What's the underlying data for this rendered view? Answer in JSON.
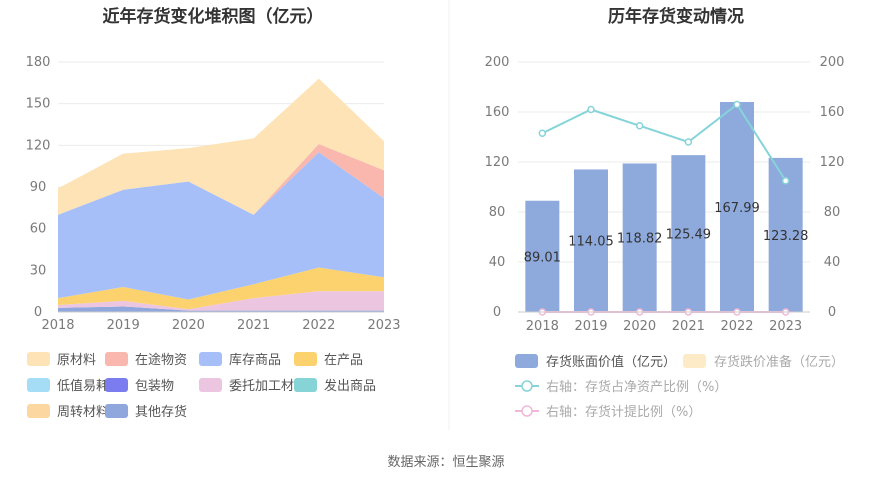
{
  "left_chart": {
    "title": "近年存货变化堆积图（亿元）",
    "chart_data": {
      "type": "area",
      "stacked": true,
      "x": [
        "2018",
        "2019",
        "2020",
        "2021",
        "2022",
        "2023"
      ],
      "ylim": [
        0,
        180
      ],
      "yticks": [
        "0",
        "30",
        "60",
        "90",
        "120",
        "150",
        "180"
      ],
      "series": [
        {
          "name": "原材料",
          "color": "#fde3b5",
          "values": [
            19,
            26,
            24,
            55,
            47,
            21
          ]
        },
        {
          "name": "在途物资",
          "color": "#f9b7ae",
          "values": [
            0,
            0,
            0,
            0,
            6,
            20
          ]
        },
        {
          "name": "库存商品",
          "color": "#a6bff9",
          "values": [
            60,
            70,
            85,
            50,
            83,
            57
          ]
        },
        {
          "name": "在产品",
          "color": "#fcd26f",
          "values": [
            5,
            10,
            7,
            10,
            17,
            10
          ]
        },
        {
          "name": "低值易耗品",
          "color": "#a5dcf6",
          "values": [
            0,
            0,
            0,
            0,
            0,
            0
          ]
        },
        {
          "name": "包装物",
          "color": "#7b7cf0",
          "values": [
            0,
            0,
            0,
            0,
            0,
            0
          ]
        },
        {
          "name": "委托加工材料",
          "color": "#ecc6e1",
          "values": [
            2,
            4,
            1,
            9,
            14,
            14
          ]
        },
        {
          "name": "发出商品",
          "color": "#86d4d5",
          "values": [
            0,
            0,
            0,
            0,
            0,
            0
          ]
        },
        {
          "name": "周转材料",
          "color": "#fdd7a0",
          "values": [
            0,
            0,
            0,
            0,
            0,
            0
          ]
        },
        {
          "name": "其他存货",
          "color": "#8fa7dd",
          "values": [
            3,
            4,
            1,
            1,
            1,
            1
          ]
        }
      ]
    }
  },
  "right_chart": {
    "title": "历年存货变动情况",
    "chart_data": {
      "type": "bar",
      "categories": [
        "2018",
        "2019",
        "2020",
        "2021",
        "2022",
        "2023"
      ],
      "ylim": [
        0,
        200
      ],
      "yticks": [
        "0",
        "40",
        "80",
        "120",
        "160",
        "200"
      ],
      "y2lim": [
        0,
        200
      ],
      "y2ticks": [
        "0",
        "40",
        "80",
        "120",
        "160",
        "200"
      ],
      "series": [
        {
          "name": "存货账面价值（亿元）",
          "type": "bar",
          "color": "#8eaadd",
          "values": [
            89.01,
            114.05,
            118.82,
            125.49,
            167.99,
            123.28
          ],
          "labels": [
            "89.01",
            "114.05",
            "118.82",
            "125.49",
            "167.99",
            "123.28"
          ]
        },
        {
          "name": "存货跌价准备（亿元）",
          "type": "bar",
          "color": "#fdebc8",
          "values": [
            0,
            0,
            0,
            0,
            0,
            0
          ]
        },
        {
          "name": "右轴：存货占净资产比例（%）",
          "type": "line",
          "axis": "right",
          "color": "#86d4d9",
          "values": [
            143,
            162,
            149,
            136,
            166,
            105
          ]
        },
        {
          "name": "右轴：存货计提比例（%）",
          "type": "line",
          "axis": "right",
          "color": "#f0b8d8",
          "values": [
            0,
            0,
            0,
            0,
            0,
            0
          ]
        }
      ]
    }
  },
  "footer": {
    "source": "数据来源：恒生聚源"
  }
}
